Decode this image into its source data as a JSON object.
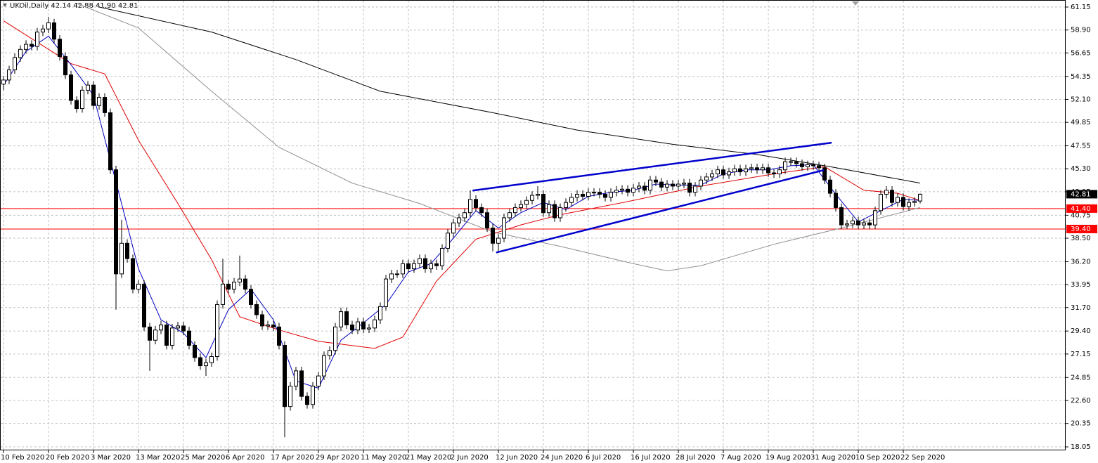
{
  "chart_data": {
    "type": "candlestick",
    "title": "UKOil,Daily  42.14 42.88 41.90 42.81",
    "categories": [
      "10 Feb 2020",
      null,
      null,
      null,
      null,
      null,
      null,
      null,
      "20 Feb 2020",
      null,
      null,
      null,
      null,
      null,
      null,
      null,
      "3 Mar 2020",
      null,
      null,
      null,
      null,
      null,
      null,
      null,
      "13 Mar 2020",
      null,
      null,
      null,
      null,
      null,
      null,
      null,
      "25 Mar 2020",
      null,
      null,
      null,
      null,
      null,
      null,
      null,
      "6 Apr 2020",
      null,
      null,
      null,
      null,
      null,
      null,
      null,
      "17 Apr 2020",
      null,
      null,
      null,
      null,
      null,
      null,
      null,
      "29 Apr 2020",
      null,
      null,
      null,
      null,
      null,
      null,
      null,
      "11 May 2020",
      null,
      null,
      null,
      null,
      null,
      null,
      null,
      "21 May 2020",
      null,
      null,
      null,
      null,
      null,
      null,
      null,
      "2 Jun 2020",
      null,
      null,
      null,
      null,
      null,
      null,
      null,
      "12 Jun 2020",
      null,
      null,
      null,
      null,
      null,
      null,
      null,
      "24 Jun 2020",
      null,
      null,
      null,
      null,
      null,
      null,
      null,
      "6 Jul 2020",
      null,
      null,
      null,
      null,
      null,
      null,
      null,
      "16 Jul 2020",
      null,
      null,
      null,
      null,
      null,
      null,
      null,
      "28 Jul 2020",
      null,
      null,
      null,
      null,
      null,
      null,
      null,
      "7 Aug 2020",
      null,
      null,
      null,
      null,
      null,
      null,
      null,
      "19 Aug 2020",
      null,
      null,
      null,
      null,
      null,
      null,
      null,
      "31 Aug 2020",
      null,
      null,
      null,
      null,
      null,
      null,
      null,
      "10 Sep 2020",
      null,
      null,
      null,
      null,
      null,
      null,
      null,
      "22 Sep 2020",
      null,
      null,
      null
    ],
    "open": [
      53.6,
      54.0,
      55.0,
      56.2,
      57.0,
      57.5,
      57.3,
      58.7,
      59.0,
      59.6,
      58.0,
      56.3,
      54.5,
      52.0,
      51.2,
      53.0,
      53.5,
      51.5,
      52.3,
      50.8,
      45.2,
      35.0,
      38.0,
      36.5,
      33.5,
      34.0,
      29.8,
      28.5,
      29.5,
      30.0,
      28.0,
      29.7,
      29.9,
      29.4,
      28.0,
      26.8,
      26.0,
      26.3,
      26.9,
      32.0,
      34.0,
      33.5,
      34.2,
      34.5,
      33.5,
      32.0,
      31.0,
      29.9,
      30.0,
      29.8,
      28.0,
      22.0,
      24.0,
      25.5,
      23.0,
      22.2,
      24.0,
      25.0,
      27.0,
      27.5,
      29.8,
      31.3,
      30.0,
      29.5,
      30.3,
      29.6,
      29.7,
      30.5,
      31.8,
      34.5,
      35.0,
      35.0,
      36.0,
      35.5,
      36.0,
      36.5,
      35.5,
      36.0,
      35.8,
      37.5,
      39.0,
      40.0,
      40.5,
      41.0,
      42.3,
      41.5,
      41.0,
      39.5,
      38.0,
      38.5,
      40.5,
      41.0,
      41.5,
      41.8,
      42.2,
      42.7,
      42.8,
      41.0,
      41.8,
      40.5,
      41.5,
      42.0,
      42.5,
      42.8,
      42.6,
      43.0,
      43.0,
      42.8,
      42.5,
      43.0,
      43.2,
      43.3,
      43.0,
      43.4,
      43.6,
      43.2,
      44.2,
      44.0,
      43.5,
      43.8,
      43.6,
      43.8,
      43.9,
      43.0,
      43.6,
      44.2,
      44.5,
      44.8,
      45.2,
      44.7,
      45.0,
      45.3,
      45.0,
      45.3,
      45.4,
      45.2,
      45.4,
      44.9,
      44.8,
      45.2,
      46.0,
      46.0,
      45.8,
      45.5,
      45.7,
      45.6,
      45.4,
      44.2,
      42.9,
      41.5,
      39.8,
      39.9,
      40.2,
      39.8,
      40.0,
      39.8,
      41.2,
      42.8,
      43.2,
      42.0,
      42.5,
      41.6,
      42.0,
      42.14
    ],
    "high": [
      54.4,
      55.4,
      56.6,
      57.4,
      57.9,
      57.9,
      59.1,
      59.4,
      60.2,
      60.0,
      58.4,
      56.7,
      54.9,
      52.4,
      53.4,
      53.9,
      53.9,
      52.7,
      52.7,
      51.2,
      45.6,
      40.3,
      38.4,
      36.9,
      34.4,
      34.4,
      30.2,
      29.9,
      30.4,
      30.4,
      30.1,
      30.3,
      30.3,
      29.8,
      28.4,
      27.2,
      26.7,
      27.3,
      32.4,
      36.5,
      34.4,
      34.6,
      36.8,
      34.9,
      33.9,
      32.4,
      31.4,
      30.4,
      30.4,
      30.2,
      28.4,
      24.4,
      25.9,
      25.9,
      23.4,
      24.4,
      25.4,
      27.4,
      27.9,
      30.2,
      31.7,
      31.7,
      30.4,
      30.7,
      30.7,
      30.1,
      30.9,
      32.2,
      34.9,
      35.4,
      35.4,
      36.4,
      36.4,
      36.4,
      36.9,
      36.9,
      36.4,
      36.4,
      37.9,
      39.4,
      40.4,
      40.9,
      41.4,
      43.2,
      42.7,
      41.9,
      41.4,
      39.9,
      38.9,
      40.9,
      41.4,
      41.9,
      42.2,
      42.6,
      43.1,
      43.6,
      43.2,
      42.2,
      42.2,
      41.9,
      42.4,
      42.9,
      43.2,
      43.2,
      43.4,
      43.4,
      43.4,
      43.2,
      43.4,
      43.6,
      43.7,
      43.7,
      43.8,
      44.0,
      44.0,
      44.6,
      44.6,
      44.4,
      44.2,
      44.2,
      44.2,
      44.3,
      44.3,
      44.0,
      44.6,
      44.9,
      45.2,
      45.6,
      45.6,
      45.4,
      45.7,
      45.7,
      45.7,
      45.8,
      45.8,
      45.8,
      45.8,
      45.3,
      45.6,
      46.4,
      46.4,
      46.4,
      46.2,
      46.1,
      46.1,
      46.0,
      45.8,
      44.6,
      43.3,
      41.9,
      40.3,
      40.6,
      40.6,
      40.4,
      40.4,
      41.6,
      43.2,
      43.6,
      43.6,
      42.9,
      42.9,
      42.4,
      42.5,
      42.88
    ],
    "low": [
      53.0,
      53.6,
      54.6,
      55.8,
      56.6,
      56.9,
      56.9,
      58.3,
      58.6,
      57.6,
      55.9,
      54.1,
      51.6,
      50.8,
      50.8,
      52.6,
      51.1,
      51.1,
      50.4,
      44.8,
      31.5,
      34.6,
      36.1,
      33.1,
      33.1,
      29.4,
      25.5,
      28.1,
      29.1,
      27.6,
      27.6,
      29.3,
      29.0,
      27.6,
      26.4,
      25.6,
      25.0,
      25.9,
      26.5,
      31.6,
      33.1,
      33.1,
      33.8,
      33.1,
      31.6,
      30.6,
      29.5,
      29.5,
      29.4,
      27.6,
      19.0,
      21.6,
      23.6,
      22.6,
      21.8,
      21.8,
      23.6,
      24.6,
      26.6,
      27.1,
      29.4,
      29.6,
      29.1,
      29.1,
      29.2,
      29.2,
      29.3,
      30.1,
      31.4,
      34.1,
      34.6,
      34.6,
      35.1,
      35.1,
      35.6,
      35.1,
      35.1,
      35.4,
      35.4,
      37.1,
      38.6,
      39.6,
      40.1,
      40.6,
      41.1,
      40.6,
      39.1,
      37.2,
      37.2,
      38.1,
      40.1,
      40.6,
      41.1,
      41.4,
      41.8,
      42.3,
      40.6,
      40.6,
      40.1,
      40.1,
      41.1,
      41.6,
      42.1,
      42.2,
      42.2,
      42.6,
      42.4,
      42.1,
      42.1,
      42.6,
      42.8,
      42.6,
      42.6,
      43.0,
      42.8,
      42.8,
      43.6,
      43.1,
      43.1,
      43.2,
      43.2,
      43.4,
      42.6,
      42.6,
      43.2,
      43.8,
      44.1,
      44.4,
      44.3,
      44.3,
      44.6,
      44.6,
      44.6,
      44.9,
      44.8,
      44.8,
      44.5,
      44.4,
      44.4,
      44.8,
      45.6,
      45.4,
      45.1,
      45.1,
      45.2,
      45.0,
      43.8,
      42.5,
      41.1,
      39.4,
      39.4,
      39.5,
      39.4,
      39.4,
      39.4,
      39.4,
      40.8,
      42.4,
      41.6,
      41.6,
      41.2,
      41.2,
      41.6,
      41.9
    ],
    "close": [
      54.0,
      55.0,
      56.2,
      57.0,
      57.5,
      57.3,
      58.7,
      59.0,
      59.6,
      58.0,
      56.3,
      54.5,
      52.0,
      51.2,
      53.0,
      53.5,
      51.5,
      52.3,
      50.8,
      45.2,
      35.0,
      38.0,
      36.5,
      33.5,
      34.0,
      29.8,
      28.5,
      29.5,
      30.0,
      28.0,
      29.7,
      29.9,
      29.4,
      28.0,
      26.8,
      26.0,
      26.3,
      26.9,
      32.0,
      34.0,
      33.5,
      34.2,
      34.5,
      33.5,
      32.0,
      31.0,
      29.9,
      30.0,
      29.8,
      28.0,
      22.0,
      24.0,
      25.5,
      23.0,
      22.2,
      24.0,
      25.0,
      27.0,
      27.5,
      29.8,
      31.3,
      30.0,
      29.5,
      30.3,
      29.6,
      29.7,
      30.5,
      31.8,
      34.5,
      35.0,
      35.0,
      36.0,
      35.5,
      36.0,
      36.5,
      35.5,
      36.0,
      35.8,
      37.5,
      39.0,
      40.0,
      40.5,
      41.0,
      42.3,
      41.5,
      41.0,
      39.5,
      38.0,
      38.5,
      40.5,
      41.0,
      41.5,
      41.8,
      42.2,
      42.7,
      42.8,
      41.0,
      41.8,
      40.5,
      41.5,
      42.0,
      42.5,
      42.8,
      42.6,
      43.0,
      43.0,
      42.8,
      42.5,
      43.0,
      43.2,
      43.3,
      43.0,
      43.4,
      43.6,
      43.2,
      44.2,
      44.0,
      43.5,
      43.8,
      43.6,
      43.8,
      43.9,
      43.0,
      43.6,
      44.2,
      44.5,
      44.8,
      45.2,
      44.7,
      45.0,
      45.3,
      45.0,
      45.3,
      45.4,
      45.2,
      45.4,
      44.9,
      44.8,
      45.2,
      46.0,
      46.0,
      45.8,
      45.5,
      45.7,
      45.6,
      45.4,
      44.2,
      42.9,
      41.5,
      39.8,
      39.9,
      40.2,
      39.8,
      40.0,
      39.8,
      41.2,
      42.8,
      43.2,
      42.0,
      42.5,
      41.6,
      42.0,
      42.1,
      42.81
    ],
    "up_color": "#ffffff",
    "down_color": "#000000",
    "ylim": [
      17.71,
      61.84
    ],
    "yticks": [
      61.15,
      {
        "value": 58.9,
        "label": "58.90"
      },
      56.65,
      54.35,
      {
        "value": 52.1,
        "label": "52.10"
      },
      49.85,
      47.55,
      {
        "value": 45.3,
        "label": "45.30"
      },
      43.05,
      40.75,
      {
        "value": 38.5,
        "label": "38.50"
      },
      {
        "value": 36.2,
        "label": "36.20"
      },
      33.95,
      {
        "value": 31.7,
        "label": "31.70"
      },
      {
        "value": 29.4,
        "label": "29.40"
      },
      27.15,
      24.85,
      {
        "value": 22.6,
        "label": "22.60"
      },
      20.35,
      18.05
    ],
    "grid": true,
    "overlays": [
      {
        "color": "#000000",
        "x": [
          17,
          37,
          52,
          67,
          87,
          102,
          119,
          134,
          147,
          163
        ],
        "values": [
          61.15,
          58.7,
          56.0,
          52.9,
          50.8,
          49.1,
          47.7,
          46.7,
          45.5,
          43.9
        ]
      },
      {
        "color": "#909090",
        "x": [
          13,
          24,
          37,
          49,
          62,
          74,
          87,
          99,
          112,
          118,
          124,
          137,
          149,
          163
        ],
        "values": [
          61.5,
          59.1,
          52.9,
          47.4,
          43.9,
          41.9,
          39.1,
          37.7,
          36.0,
          35.3,
          35.8,
          37.9,
          39.5,
          41.5
        ]
      },
      {
        "color": "#e00000",
        "x": [
          0,
          6,
          12,
          18,
          24,
          31,
          37,
          42,
          49,
          56,
          66,
          71,
          77,
          84,
          92,
          99,
          112,
          124,
          137,
          146,
          153,
          159,
          163
        ],
        "values": [
          59.8,
          57.7,
          55.6,
          54.6,
          48.1,
          41.9,
          36.4,
          30.8,
          29.5,
          28.4,
          27.7,
          28.8,
          34.3,
          38.4,
          39.8,
          40.8,
          42.2,
          43.6,
          44.8,
          45.5,
          43.2,
          42.9,
          42.2
        ]
      },
      {
        "color": "#0000c0",
        "x": [
          0,
          4,
          8,
          12,
          16,
          20,
          24,
          28,
          32,
          36,
          40,
          44,
          48,
          52,
          56,
          60,
          64,
          68,
          72,
          76,
          80,
          84,
          88,
          92,
          96,
          100,
          104,
          108,
          112,
          116,
          120,
          124,
          128,
          132,
          136,
          140,
          144,
          148,
          152,
          156,
          160,
          163
        ],
        "values": [
          53.5,
          56.8,
          58.3,
          55.5,
          52.5,
          44,
          35.5,
          30.5,
          29.2,
          26.8,
          31.5,
          33.5,
          30.5,
          24.5,
          23.8,
          28.5,
          30.2,
          32,
          35.2,
          36,
          38.5,
          41.2,
          39.5,
          41,
          42,
          41.3,
          42.6,
          43,
          43.2,
          43.8,
          43.7,
          43.7,
          44.8,
          45.2,
          45.2,
          45.6,
          45.7,
          42.8,
          40.1,
          41.2,
          42.3,
          42.2
        ]
      }
    ],
    "trendlines": [
      {
        "color": "#0000cc",
        "x": [
          83.4,
          147.25
        ],
        "values": [
          43.17,
          47.86
        ]
      },
      {
        "color": "#0000cc",
        "x": [
          87.6,
          145.9
        ],
        "values": [
          37.1,
          45.17
        ]
      }
    ],
    "hlines": [
      {
        "value": 41.4,
        "label": "41.40",
        "color": "#ff0000"
      },
      {
        "value": 39.4,
        "label": "39.40",
        "color": "#ff0000"
      }
    ],
    "price_line": {
      "value": 42.81,
      "color": "#000000"
    }
  }
}
